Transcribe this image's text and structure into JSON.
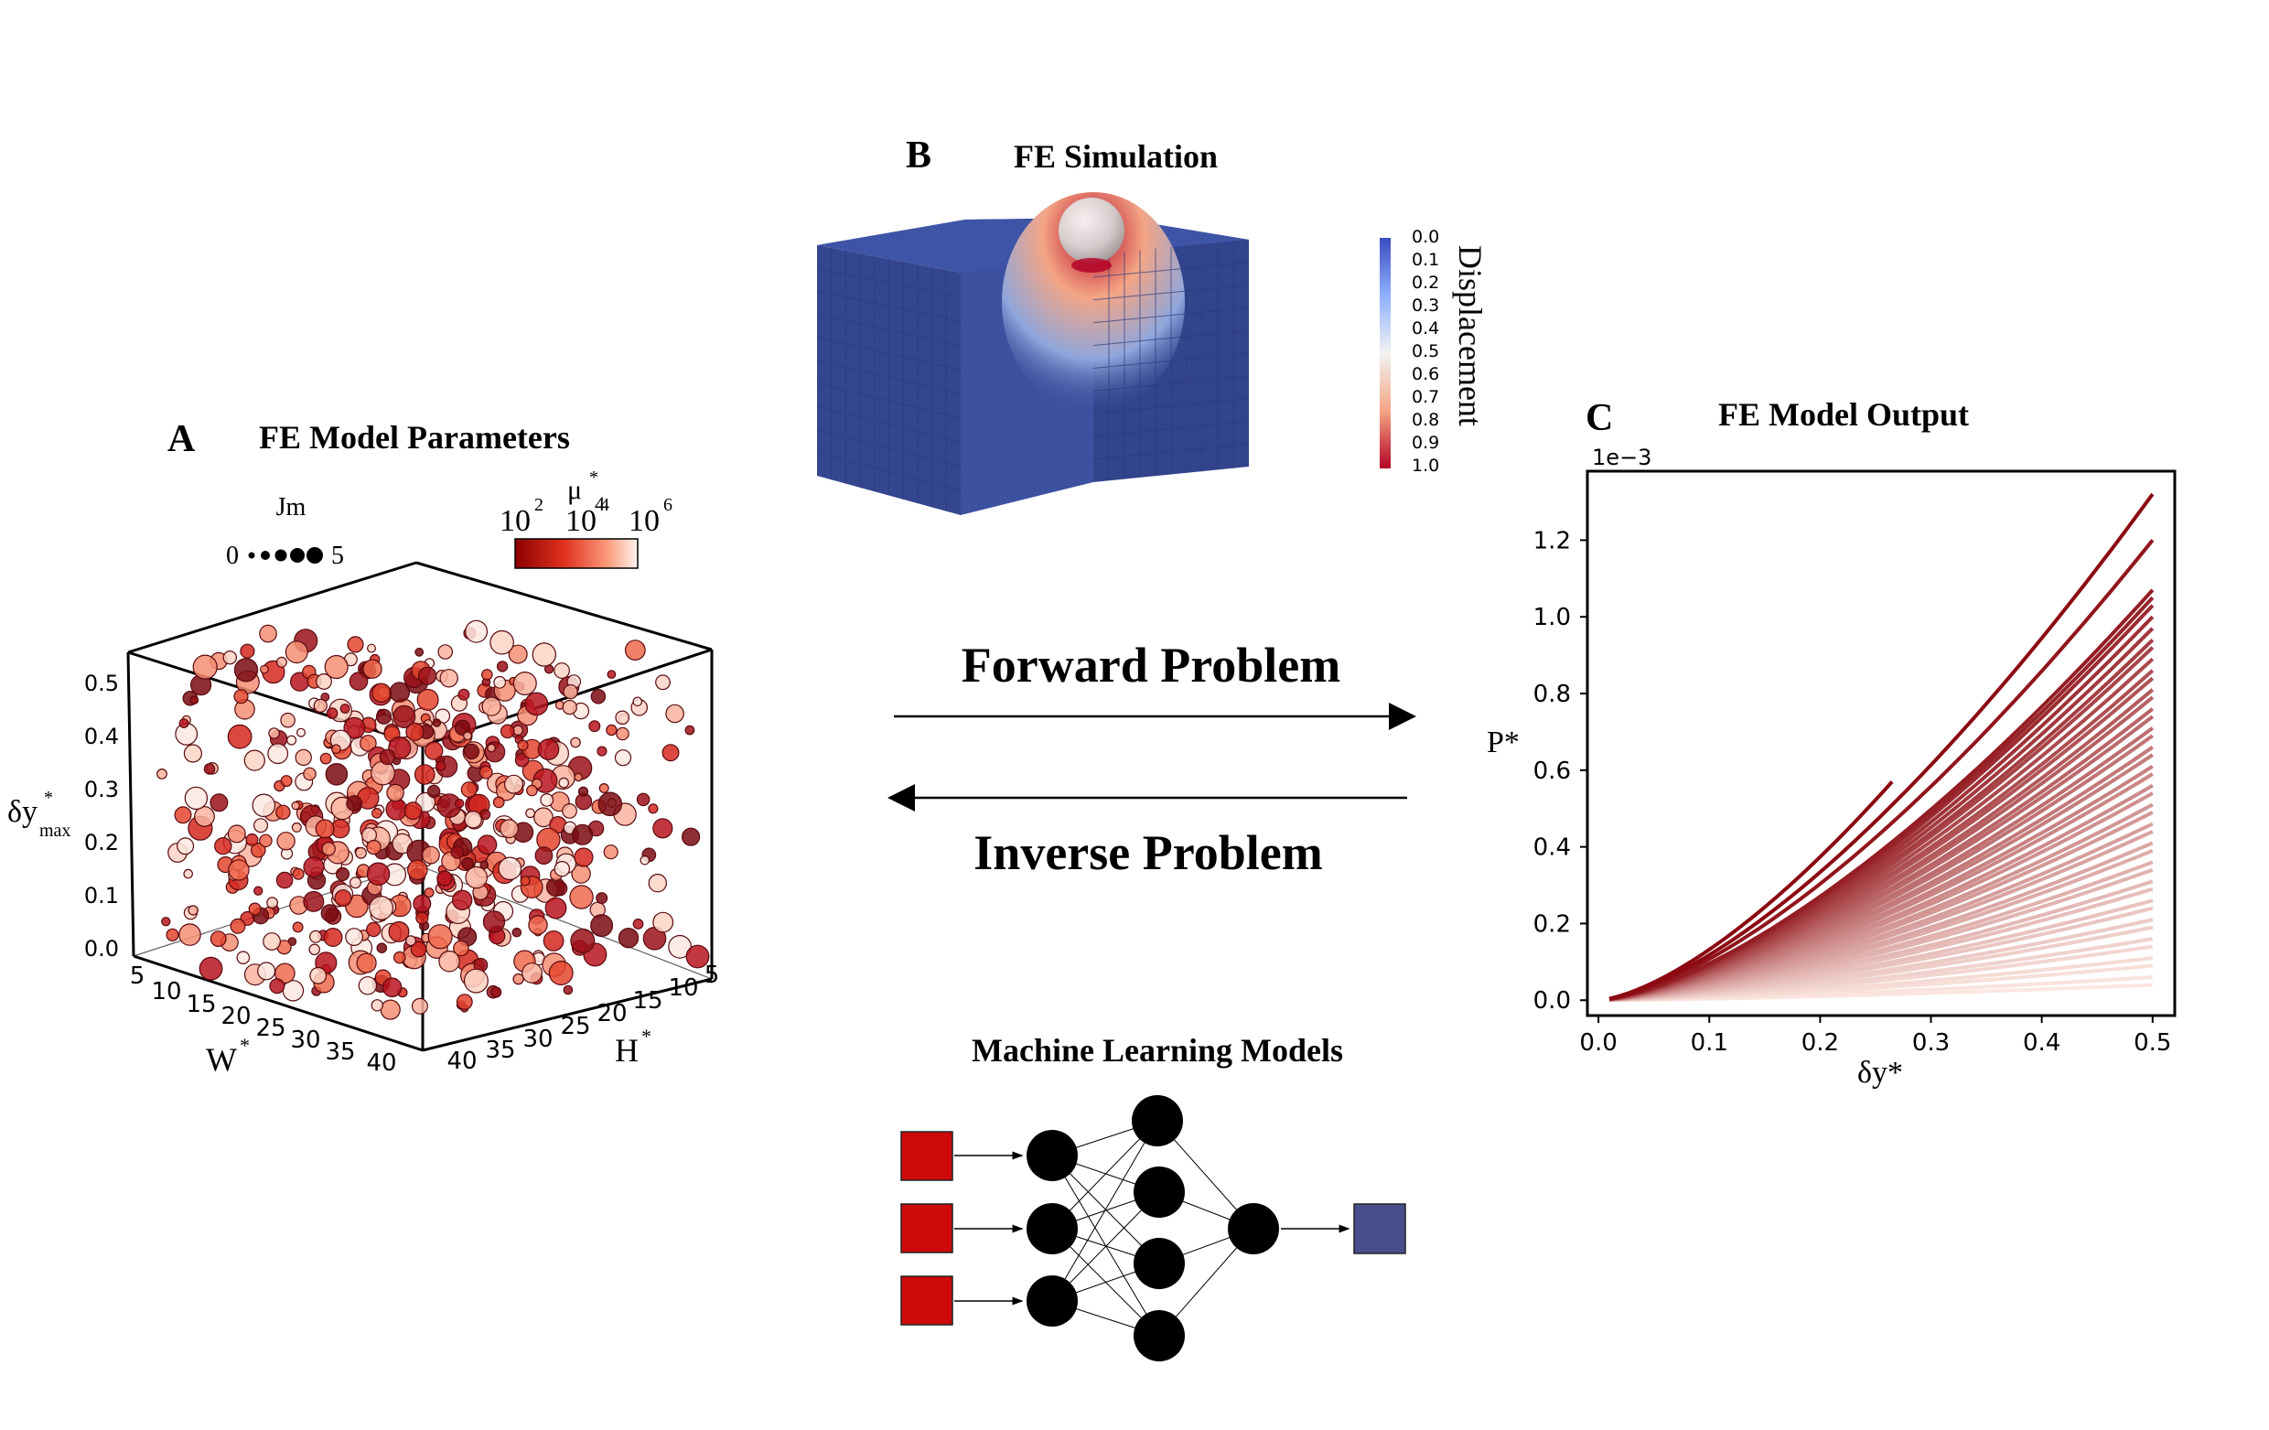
{
  "panel_a": {
    "letter": "A",
    "title": "FE Model Parameters",
    "size_legend": {
      "title": "Jm",
      "min": "0",
      "max": "5"
    },
    "color_legend": {
      "label": "μ",
      "label_sup": "*",
      "label_sub": "4",
      "ticks": [
        "10",
        "10",
        "10"
      ],
      "tick_exps": [
        "2",
        "4",
        "6"
      ]
    },
    "axes": {
      "z_label": "δy",
      "z_label_sup": "*",
      "z_label_sub": "max",
      "z_ticks": [
        "0.0",
        "0.1",
        "0.2",
        "0.3",
        "0.4",
        "0.5"
      ],
      "x_label": "W",
      "x_label_sup": "*",
      "x_ticks": [
        "5",
        "10",
        "15",
        "20",
        "25",
        "30",
        "35",
        "40"
      ],
      "y_label": "H",
      "y_label_sup": "*",
      "y_ticks": [
        "40",
        "35",
        "30",
        "25",
        "20",
        "15",
        "10",
        "5"
      ]
    }
  },
  "panel_b": {
    "letter": "B",
    "title": "FE Simulation",
    "colorbar_label": "Displacement",
    "colorbar_ticks": [
      "0.0",
      "0.1",
      "0.2",
      "0.3",
      "0.4",
      "0.5",
      "0.6",
      "0.7",
      "0.8",
      "0.9",
      "1.0"
    ],
    "colors": {
      "block": "#3a4e9c",
      "indent_high": "#c0141c",
      "cbar_top": "#3b4cc0",
      "cbar_mid": "#f2f2f2",
      "cbar_bottom": "#b40426"
    }
  },
  "center": {
    "forward": "Forward Problem",
    "inverse": "Inverse Problem"
  },
  "ml": {
    "title": "Machine Learning Models",
    "colors": {
      "input": "#cc0a0a",
      "output": "#474e8c",
      "node": "#000000"
    }
  },
  "panel_c": {
    "letter": "C",
    "title": "FE Model Output",
    "scale_note": "1e−3"
  },
  "chart_data": {
    "type": "line",
    "title": "FE Model Output",
    "xlabel": "δy*",
    "ylabel": "P*",
    "scale_note": "1e−3",
    "xlim": [
      -0.01,
      0.52
    ],
    "ylim": [
      -0.04,
      1.38
    ],
    "x_ticks": [
      "0.0",
      "0.1",
      "0.2",
      "0.3",
      "0.4",
      "0.5"
    ],
    "y_ticks": [
      "0.0",
      "0.2",
      "0.4",
      "0.6",
      "0.8",
      "1.0",
      "1.2"
    ],
    "series_note": "family of load–displacement curves P* ≈ a·(δy*)^1.5, colour from dark red (stiff) to pale (soft)",
    "curve_end_values": [
      1.32,
      1.2,
      1.07,
      1.05,
      1.03,
      1.0,
      0.97,
      0.94,
      0.92,
      0.89,
      0.86,
      0.84,
      0.81,
      0.79,
      0.76,
      0.74,
      0.71,
      0.69,
      0.66,
      0.64,
      0.61,
      0.59,
      0.56,
      0.54,
      0.51,
      0.49,
      0.46,
      0.44,
      0.41,
      0.39,
      0.36,
      0.34,
      0.31,
      0.29,
      0.26,
      0.24,
      0.21,
      0.19,
      0.16,
      0.14,
      0.11,
      0.09,
      0.06,
      0.04
    ],
    "short_curve": {
      "x_end": 0.265,
      "y_end": 0.57
    },
    "grid": false,
    "colors": {
      "dark": "#8b0a12",
      "light": "#fbe7e0"
    }
  }
}
